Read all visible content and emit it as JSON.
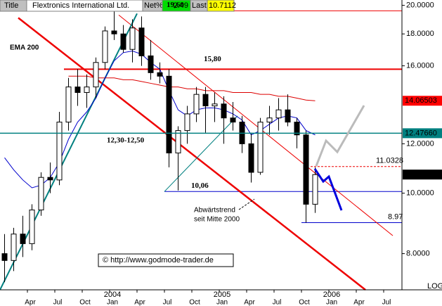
{
  "header": {
    "title_cell": "Title",
    "name": "Flextronics International Ltd.",
    "net_label": "Net%",
    "net": 2.49,
    "last_label": "Last",
    "last": 10.7112
  },
  "chart_data": {
    "type": "candlestick",
    "log": true,
    "grid": false,
    "categories": [
      "2003-01",
      "2003-02",
      "2003-03",
      "2003-04",
      "2003-05",
      "2003-06",
      "2003-07",
      "2003-08",
      "2003-09",
      "2003-10",
      "2003-11",
      "2003-12",
      "2004-01",
      "2004-02",
      "2004-03",
      "2004-04",
      "2004-05",
      "2004-06",
      "2004-07",
      "2004-08",
      "2004-09",
      "2004-10",
      "2004-11",
      "2004-12",
      "2005-01",
      "2005-02",
      "2005-03",
      "2005-04",
      "2005-05",
      "2005-06",
      "2005-07",
      "2005-08",
      "2005-09",
      "2005-10",
      "2005-11"
    ],
    "open": [
      8.0,
      7.8,
      8.6,
      8.3,
      9.4,
      10.6,
      10.5,
      13.0,
      14.8,
      14.5,
      14.8,
      16.2,
      18.2,
      18.0,
      17.0,
      18.4,
      16.6,
      15.6,
      15.4,
      11.6,
      12.6,
      13.4,
      14.4,
      13.8,
      13.9,
      13.2,
      13.0,
      12.0,
      10.8,
      13.0,
      13.2,
      13.6,
      13.0,
      12.4,
      9.6
    ],
    "high": [
      8.6,
      8.8,
      9.2,
      9.6,
      10.8,
      11.2,
      13.5,
      15.3,
      15.8,
      15.5,
      16.5,
      18.5,
      19.6,
      18.6,
      19.0,
      19.2,
      17.6,
      16.2,
      15.8,
      12.8,
      13.8,
      14.8,
      14.8,
      14.5,
      14.3,
      14.0,
      13.3,
      12.5,
      13.2,
      13.8,
      14.2,
      14.4,
      13.2,
      12.6,
      11.0
    ],
    "low": [
      7.2,
      7.5,
      7.9,
      8.1,
      9.2,
      10.0,
      10.3,
      12.6,
      13.8,
      13.7,
      14.2,
      15.8,
      17.6,
      16.8,
      16.2,
      16.0,
      15.2,
      15.0,
      11.0,
      10.1,
      12.0,
      13.0,
      12.5,
      13.0,
      12.0,
      12.6,
      11.6,
      10.4,
      10.7,
      12.4,
      12.6,
      12.8,
      11.8,
      8.97,
      9.3
    ],
    "close": [
      7.8,
      8.6,
      8.3,
      9.4,
      10.6,
      10.5,
      13.0,
      14.8,
      14.5,
      14.8,
      16.2,
      18.2,
      18.0,
      17.0,
      18.4,
      16.6,
      15.6,
      15.4,
      11.6,
      12.6,
      13.4,
      14.4,
      13.8,
      13.9,
      13.2,
      13.0,
      12.0,
      10.8,
      13.0,
      13.2,
      13.6,
      13.0,
      12.4,
      9.6,
      10.71
    ],
    "indicators": [
      {
        "name": "EMA 200",
        "color": "#dd0000",
        "values": [
          null,
          null,
          null,
          null,
          null,
          null,
          null,
          15.4,
          15.4,
          15.4,
          15.3,
          15.3,
          15.3,
          15.2,
          15.2,
          15.1,
          15.0,
          14.9,
          14.8,
          14.8,
          14.7,
          14.7,
          14.6,
          14.6,
          14.6,
          14.5,
          14.5,
          14.5,
          14.4,
          14.4,
          14.3,
          14.3,
          14.2,
          14.1,
          14.06503
        ]
      },
      {
        "color": "#0000cc",
        "values": [
          11.4,
          10.9,
          10.5,
          10.2,
          10.3,
          10.6,
          11.2,
          12.2,
          13.0,
          13.5,
          14.2,
          15.3,
          16.3,
          16.8,
          16.9,
          16.7,
          16.2,
          15.8,
          14.6,
          13.6,
          13.3,
          13.6,
          13.7,
          13.7,
          13.6,
          13.4,
          13.1,
          12.4,
          12.6,
          12.9,
          13.2,
          13.3,
          13.2,
          12.6,
          12.4
        ]
      }
    ],
    "trendlines": [
      {
        "color": "#ee0000",
        "width": 2.5,
        "x": [
          "2003-03",
          "2006-05"
        ],
        "y": [
          19.1,
          7.0
        ]
      },
      {
        "color": "#ee0000",
        "width": 1,
        "x": [
          "2004-02",
          "2006-08"
        ],
        "y": [
          19.3,
          8.55
        ]
      },
      {
        "color": "#008080",
        "width": 2,
        "x": [
          "2003-01",
          "2004-04"
        ],
        "y": [
          7.0,
          19.4
        ]
      },
      {
        "color": "#008080",
        "width": 1,
        "x": [
          "2004-07",
          "2005-03"
        ],
        "y": [
          10.06,
          13.3
        ]
      }
    ],
    "levels": [
      {
        "value": 19.6,
        "label": "19,60",
        "color": "#ee0000",
        "width": 1,
        "from": "2003-01"
      },
      {
        "value": 15.8,
        "label": "15,80",
        "color": "#ee0000",
        "width": 2,
        "from": "2003-08"
      },
      {
        "value": 10.06,
        "label": "10,06",
        "color": "#0000cc",
        "width": 1,
        "from": "2004-07"
      },
      {
        "value": 11.0328,
        "label": "11.0328",
        "color": "#ee0000",
        "width": 1,
        "from": "2005-11",
        "dashed": true
      },
      {
        "value": 8.97,
        "label": "8.97",
        "color": "#0000cc",
        "width": 1,
        "from": "2005-10"
      }
    ],
    "price_boxes": [
      {
        "value": 14.06503,
        "color": "#ff0000"
      },
      {
        "value": 12.4766,
        "label": "12.47660",
        "color": "#008080",
        "line": true
      },
      {
        "value": 10.7112,
        "color": "#000000"
      }
    ],
    "annotations": {
      "range": "12,30-12,50",
      "trend_1": "Abwärtstrend",
      "trend_2": "seit Mitte 2000",
      "source": "© http://www.godmode-trader.de",
      "scale": "LOG"
    },
    "xlim": [
      "2003-01",
      "2006-09"
    ],
    "xticks": [
      {
        "value": "2003-04",
        "label": "Apr"
      },
      {
        "value": "2003-07",
        "label": "Jul"
      },
      {
        "value": "2003-10",
        "label": "Oct"
      },
      {
        "value": "2004-01",
        "label": "Jan"
      },
      {
        "value": "2004-04",
        "label": "Apr"
      },
      {
        "value": "2004-07",
        "label": "Jul"
      },
      {
        "value": "2004-10",
        "label": "Oct"
      },
      {
        "value": "2005-01",
        "label": "Jan"
      },
      {
        "value": "2005-04",
        "label": "Apr"
      },
      {
        "value": "2005-07",
        "label": "Jul"
      },
      {
        "value": "2005-10",
        "label": "Oct"
      },
      {
        "value": "2006-01",
        "label": "Jan"
      },
      {
        "value": "2006-04",
        "label": "Apr"
      },
      {
        "value": "2006-07",
        "label": "Jul"
      }
    ],
    "year_labels": [
      {
        "value": "2004-01",
        "label": "2004"
      },
      {
        "value": "2005-01",
        "label": "2005"
      },
      {
        "value": "2006-01",
        "label": "2006"
      }
    ],
    "ylim": [
      7.0,
      20.4
    ],
    "yticks": [
      {
        "value": 8,
        "label": "8.0000"
      },
      {
        "value": 10,
        "label": "10.0000"
      },
      {
        "value": 12,
        "label": "12.0000"
      },
      {
        "value": 16,
        "label": "16.0000"
      },
      {
        "value": 18,
        "label": "18.0000"
      },
      {
        "value": 20,
        "label": "20.0000"
      }
    ]
  }
}
